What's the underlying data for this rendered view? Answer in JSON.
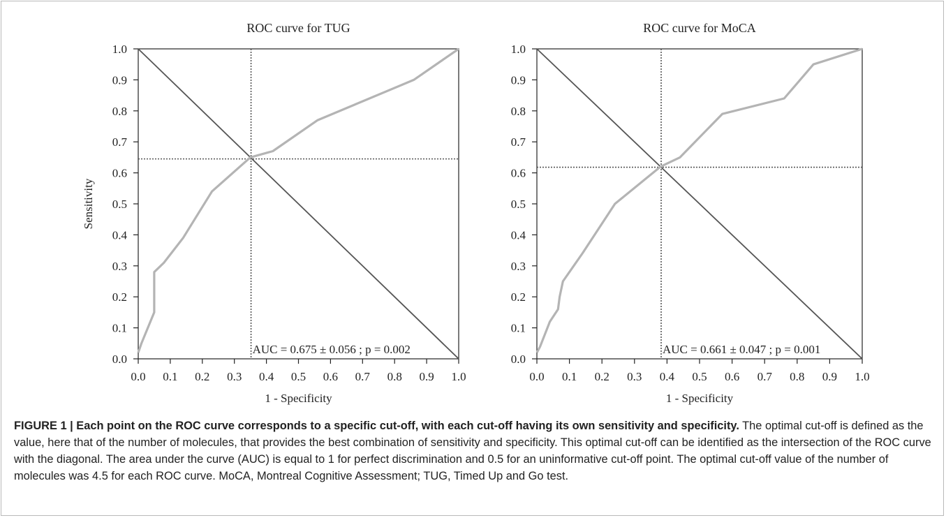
{
  "chart_data": [
    {
      "type": "line",
      "title": "ROC curve for TUG",
      "xlabel": "1 - Specificity",
      "ylabel": "Sensitivity",
      "xlim": [
        0,
        1
      ],
      "ylim": [
        0,
        1
      ],
      "xticks": [
        "0.0",
        "0.1",
        "0.2",
        "0.3",
        "0.4",
        "0.5",
        "0.6",
        "0.7",
        "0.8",
        "0.9",
        "1.0"
      ],
      "yticks": [
        "0.0",
        "0.1",
        "0.2",
        "0.3",
        "0.4",
        "0.5",
        "0.6",
        "0.7",
        "0.8",
        "0.9",
        "1.0"
      ],
      "grid": false,
      "series": [
        {
          "x": [
            0.0,
            0.01,
            0.05,
            0.05,
            0.08,
            0.14,
            0.23,
            0.35,
            0.42,
            0.56,
            0.86,
            1.0
          ],
          "y": [
            0.02,
            0.05,
            0.15,
            0.28,
            0.31,
            0.39,
            0.54,
            0.65,
            0.67,
            0.77,
            0.9,
            1.0
          ]
        }
      ],
      "reference_line": {
        "x": [
          0,
          1
        ],
        "y": [
          1,
          0
        ]
      },
      "cutoff": {
        "x": 0.352,
        "y": 0.645
      },
      "annotation": "AUC = 0.675 ± 0.056 ; p = 0.002"
    },
    {
      "type": "line",
      "title": "ROC curve for MoCA",
      "xlabel": "1 - Specificity",
      "ylabel": "",
      "xlim": [
        0,
        1
      ],
      "ylim": [
        0,
        1
      ],
      "xticks": [
        "0.0",
        "0.1",
        "0.2",
        "0.3",
        "0.4",
        "0.5",
        "0.6",
        "0.7",
        "0.8",
        "0.9",
        "1.0"
      ],
      "yticks": [
        "0.0",
        "0.1",
        "0.2",
        "0.3",
        "0.4",
        "0.5",
        "0.6",
        "0.7",
        "0.8",
        "0.9",
        "1.0"
      ],
      "grid": false,
      "series": [
        {
          "x": [
            0.0,
            0.01,
            0.04,
            0.065,
            0.07,
            0.08,
            0.14,
            0.24,
            0.38,
            0.44,
            0.57,
            0.76,
            0.85,
            1.0
          ],
          "y": [
            0.02,
            0.04,
            0.12,
            0.16,
            0.2,
            0.25,
            0.34,
            0.5,
            0.62,
            0.65,
            0.79,
            0.84,
            0.95,
            1.0
          ]
        }
      ],
      "reference_line": {
        "x": [
          0,
          1
        ],
        "y": [
          1,
          0
        ]
      },
      "cutoff": {
        "x": 0.382,
        "y": 0.618
      },
      "annotation": "AUC = 0.661 ± 0.047 ; p = 0.001"
    }
  ],
  "caption": {
    "title": "FIGURE 1 | Each point on the ROC curve corresponds to a specific cut-off, with each cut-off having its own sensitivity and specificity.",
    "body": " The optimal cut-off is defined as the value, here that of the number of molecules, that provides the best combination of sensitivity and specificity. This optimal cut-off can be identified as the intersection of the ROC curve with the diagonal. The area under the curve (AUC) is equal to 1 for perfect discrimination and 0.5 for an uninformative cut-off point. The optimal cut-off value of the number of molecules was 4.5 for each ROC curve. MoCA, Montreal Cognitive Assessment; TUG, Timed Up and Go test."
  },
  "colors": {
    "curve": "#b4b4b4",
    "diagonal": "#555555",
    "cutoff_lines": "#555555",
    "axes": "#222222"
  }
}
